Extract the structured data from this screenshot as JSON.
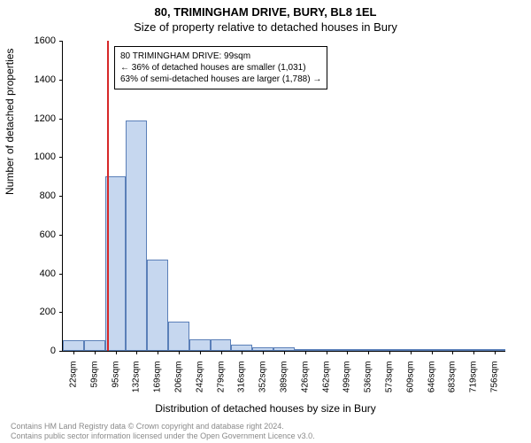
{
  "title_line1": "80, TRIMINGHAM DRIVE, BURY, BL8 1EL",
  "title_line2": "Size of property relative to detached houses in Bury",
  "ylabel": "Number of detached properties",
  "xlabel": "Distribution of detached houses by size in Bury",
  "footer_line1": "Contains HM Land Registry data © Crown copyright and database right 2024.",
  "footer_line2": "Contains public sector information licensed under the Open Government Licence v3.0.",
  "annotation": {
    "line1": "80 TRIMINGHAM DRIVE: 99sqm",
    "line2": "← 36% of detached houses are smaller (1,031)",
    "line3": "63% of semi-detached houses are larger (1,788) →"
  },
  "chart": {
    "type": "histogram",
    "y": {
      "min": 0,
      "max": 1600,
      "step": 200
    },
    "x_categories": [
      "22sqm",
      "59sqm",
      "95sqm",
      "132sqm",
      "169sqm",
      "206sqm",
      "242sqm",
      "279sqm",
      "316sqm",
      "352sqm",
      "389sqm",
      "426sqm",
      "462sqm",
      "499sqm",
      "536sqm",
      "573sqm",
      "609sqm",
      "646sqm",
      "683sqm",
      "719sqm",
      "756sqm"
    ],
    "values": [
      55,
      55,
      900,
      1190,
      470,
      150,
      60,
      60,
      30,
      18,
      18,
      5,
      4,
      2,
      2,
      2,
      1,
      1,
      1,
      1,
      1
    ],
    "bar_fill": "#c6d7ef",
    "bar_stroke": "#5a7fb8",
    "marker_color": "#d62728",
    "marker_bin_index": 2,
    "background": "#ffffff",
    "axis_color": "#000000",
    "title_fontsize": 13,
    "label_fontsize": 12,
    "tick_fontsize": 11
  }
}
